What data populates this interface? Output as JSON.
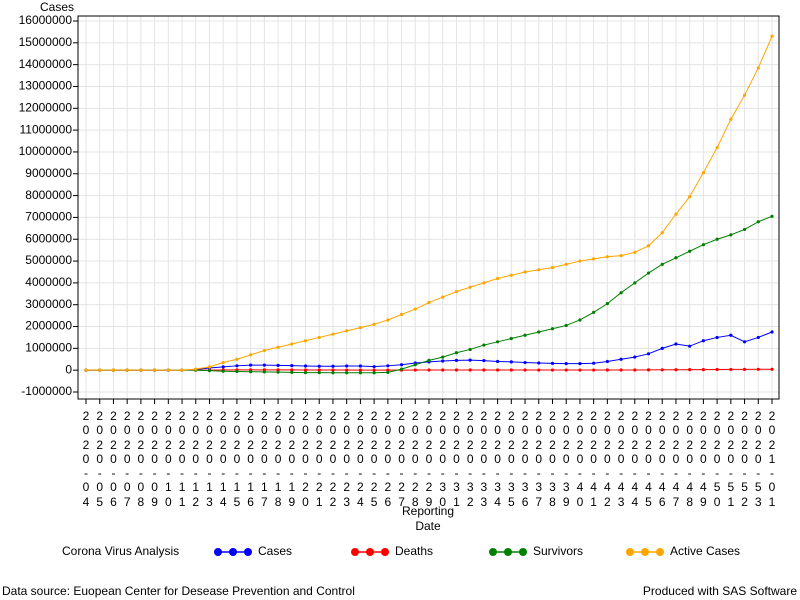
{
  "chart_data": {
    "type": "line",
    "y_label": "Cases",
    "x_label": "Reporting Date",
    "legend_title": "Corona Virus Analysis",
    "footnote_left": "Data source: Euopean Center for Desease Prevention and Control",
    "footnote_right": "Produced with SAS Software",
    "categories": [
      "2020-04",
      "2020-05",
      "2020-06",
      "2020-07",
      "2020-08",
      "2020-09",
      "2020-10",
      "2020-11",
      "2020-12",
      "2020-13",
      "2020-14",
      "2020-15",
      "2020-16",
      "2020-17",
      "2020-18",
      "2020-19",
      "2020-20",
      "2020-21",
      "2020-22",
      "2020-23",
      "2020-24",
      "2020-25",
      "2020-26",
      "2020-27",
      "2020-28",
      "2020-29",
      "2020-30",
      "2020-31",
      "2020-32",
      "2020-33",
      "2020-34",
      "2020-35",
      "2020-36",
      "2020-37",
      "2020-38",
      "2020-39",
      "2020-40",
      "2020-41",
      "2020-42",
      "2020-43",
      "2020-44",
      "2020-45",
      "2020-46",
      "2020-47",
      "2020-48",
      "2020-49",
      "2020-50",
      "2020-51",
      "2020-52",
      "2020-53",
      "2021-01"
    ],
    "series": [
      {
        "name": "Cases",
        "color": "#0000ff",
        "values": [
          0,
          0,
          0,
          0,
          0,
          0,
          0,
          0,
          30000,
          100000,
          150000,
          200000,
          230000,
          230000,
          220000,
          210000,
          190000,
          180000,
          180000,
          190000,
          190000,
          160000,
          200000,
          250000,
          330000,
          380000,
          420000,
          450000,
          460000,
          440000,
          400000,
          380000,
          350000,
          330000,
          310000,
          300000,
          300000,
          320000,
          400000,
          500000,
          600000,
          750000,
          1000000,
          1200000,
          1100000,
          1350000,
          1500000,
          1600000,
          1300000,
          1500000,
          1750000
        ]
      },
      {
        "name": "Deaths",
        "color": "#ff0000",
        "values": [
          0,
          0,
          0,
          0,
          0,
          0,
          0,
          0,
          1000,
          5000,
          10000,
          15000,
          15000,
          15000,
          14000,
          12000,
          10000,
          8000,
          7000,
          6000,
          5000,
          5000,
          5000,
          5000,
          6000,
          7000,
          8000,
          8000,
          8000,
          8000,
          7000,
          7000,
          7000,
          6000,
          6000,
          6000,
          6000,
          6000,
          7000,
          8000,
          10000,
          13000,
          17000,
          22000,
          25000,
          25000,
          30000,
          35000,
          38000,
          40000,
          40000
        ]
      },
      {
        "name": "Survivors",
        "color": "#008000",
        "values": [
          0,
          0,
          0,
          0,
          0,
          0,
          0,
          0,
          0,
          -20000,
          -50000,
          -60000,
          -70000,
          -80000,
          -90000,
          -100000,
          -110000,
          -110000,
          -120000,
          -120000,
          -120000,
          -120000,
          -100000,
          50000,
          250000,
          450000,
          600000,
          800000,
          950000,
          1150000,
          1300000,
          1450000,
          1600000,
          1750000,
          1900000,
          2050000,
          2300000,
          2650000,
          3050000,
          3550000,
          4000000,
          4450000,
          4850000,
          5150000,
          5450000,
          5750000,
          6000000,
          6200000,
          6450000,
          6800000,
          7050000
        ]
      },
      {
        "name": "Active Cases",
        "color": "#ffa500",
        "values": [
          0,
          0,
          0,
          0,
          0,
          0,
          0,
          0,
          50000,
          150000,
          350000,
          500000,
          700000,
          900000,
          1050000,
          1200000,
          1350000,
          1500000,
          1650000,
          1800000,
          1950000,
          2100000,
          2300000,
          2550000,
          2800000,
          3100000,
          3350000,
          3600000,
          3800000,
          4000000,
          4200000,
          4350000,
          4500000,
          4600000,
          4700000,
          4850000,
          5000000,
          5100000,
          5200000,
          5250000,
          5400000,
          5700000,
          6300000,
          7150000,
          7950000,
          9050000,
          10200000,
          11500000,
          12600000,
          13850000,
          15300000
        ]
      }
    ],
    "ylim": [
      -1000000,
      16000000
    ],
    "yticks": [
      -1000000,
      0,
      1000000,
      2000000,
      3000000,
      4000000,
      5000000,
      6000000,
      7000000,
      8000000,
      9000000,
      10000000,
      11000000,
      12000000,
      13000000,
      14000000,
      15000000,
      16000000
    ],
    "grid": true
  }
}
